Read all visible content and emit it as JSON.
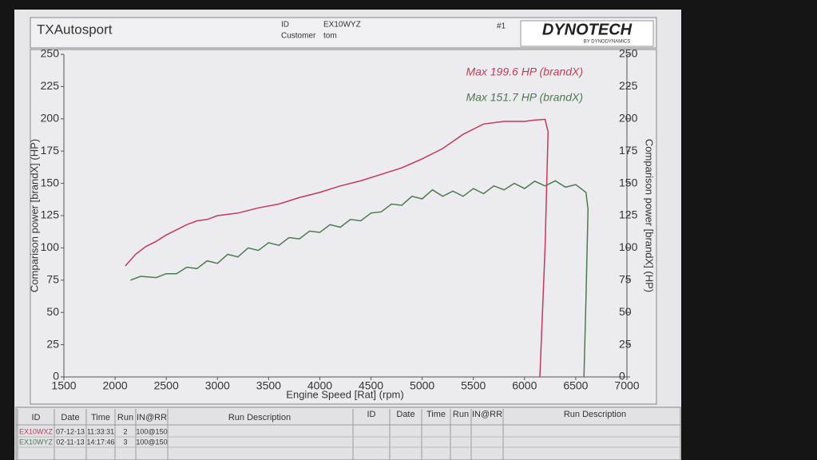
{
  "header": {
    "title": "TXAutosport",
    "id_label": "ID",
    "id": "EX10WYZ",
    "customer_label": "Customer",
    "customer": "tom",
    "page": "#1",
    "logo": "DYNOTECH",
    "logo_sub": "BY DYNODYNAMICS"
  },
  "chart_data": {
    "type": "line",
    "x_label": "Engine Speed [Rat] (rpm)",
    "y_label": "Comparison power [brandX] (HP)",
    "y2_label": "Comparison power [brandX] (HP)",
    "annotations": [
      "Max 199.6 HP (brandX)",
      "Max 151.7 HP (brandX)"
    ],
    "xlim": [
      1500,
      7000
    ],
    "xticks": [
      1500,
      2000,
      2500,
      3000,
      3500,
      4000,
      4500,
      5000,
      5500,
      6000,
      6500,
      7000
    ],
    "ylim": [
      0,
      250
    ],
    "yticks": [
      0,
      25,
      50,
      75,
      100,
      125,
      150,
      175,
      200,
      225,
      250
    ],
    "y2lim": [
      0,
      250
    ],
    "y2ticks": [
      0,
      25,
      50,
      75,
      100,
      125,
      150,
      175,
      200,
      225,
      250
    ],
    "grid": false,
    "series": [
      {
        "color": "#c23a55",
        "x": [
          2100,
          2200,
          2300,
          2400,
          2500,
          2600,
          2700,
          2800,
          2900,
          3000,
          3200,
          3400,
          3600,
          3800,
          4000,
          4200,
          4400,
          4600,
          4800,
          5000,
          5200,
          5400,
          5600,
          5800,
          6000,
          6100,
          6200,
          6230,
          6200,
          6150
        ],
        "values": [
          86,
          95,
          101,
          105,
          110,
          114,
          118,
          121,
          122,
          125,
          127,
          131,
          134,
          139,
          143,
          148,
          152,
          157,
          162,
          169,
          177,
          188,
          196,
          198,
          198,
          199,
          199.6,
          190,
          100,
          0
        ]
      },
      {
        "color": "#4d7a4d",
        "x": [
          2150,
          2250,
          2400,
          2500,
          2600,
          2700,
          2800,
          2900,
          3000,
          3100,
          3200,
          3300,
          3400,
          3500,
          3600,
          3700,
          3800,
          3900,
          4000,
          4100,
          4200,
          4300,
          4400,
          4500,
          4600,
          4700,
          4800,
          4900,
          5000,
          5100,
          5200,
          5300,
          5400,
          5500,
          5600,
          5700,
          5800,
          5900,
          6000,
          6100,
          6200,
          6300,
          6400,
          6500,
          6600,
          6620,
          6600,
          6580
        ],
        "values": [
          75,
          78,
          77,
          80,
          80,
          85,
          84,
          90,
          88,
          95,
          93,
          100,
          98,
          104,
          102,
          108,
          107,
          113,
          112,
          118,
          116,
          122,
          121,
          127,
          128,
          134,
          133,
          140,
          138,
          145,
          140,
          144,
          140,
          146,
          142,
          148,
          145,
          150,
          146,
          151.7,
          148,
          152,
          147,
          149,
          143,
          130,
          60,
          0
        ]
      }
    ]
  },
  "table": {
    "columns": [
      "ID",
      "Date",
      "Time",
      "Run",
      "IN@RR",
      "Run Description"
    ],
    "rows": [
      [
        "EX10WXZ",
        "07-12-13",
        "11:33:31",
        "2",
        "100@150"
      ],
      [
        "EX10WYZ",
        "02-11-13",
        "14:17:46",
        "3",
        "100@150"
      ]
    ]
  }
}
